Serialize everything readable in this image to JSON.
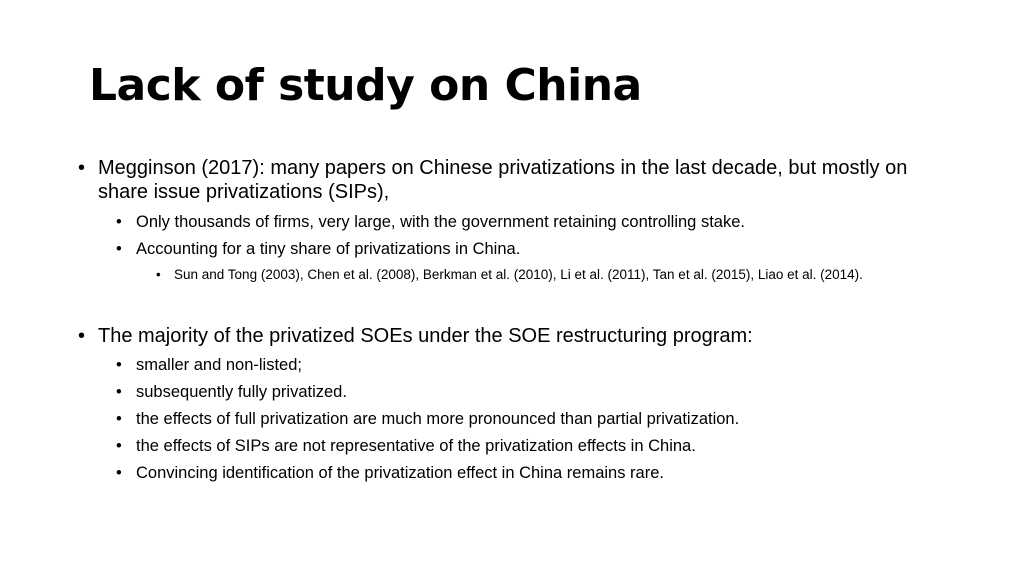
{
  "slide": {
    "title": "Lack of study on China",
    "bullet_glyph": "•",
    "items": [
      {
        "text": "Megginson (2017): many papers on Chinese privatizations in the last decade, but mostly on share issue privatizations (SIPs),",
        "children": [
          "Only thousands of firms, very large, with the government retaining controlling stake.",
          "Accounting for a tiny share of privatizations in China."
        ],
        "sub_children": [
          "Sun and Tong (2003), Chen et al. (2008), Berkman et al. (2010), Li et al. (2011), Tan et al. (2015), Liao et al. (2014)."
        ]
      },
      {
        "text": "The majority of the privatized SOEs under the SOE restructuring program:",
        "children": [
          "smaller and non-listed;",
          "subsequently fully privatized.",
          "the effects of full privatization are much more pronounced than partial privatization.",
          "the effects of SIPs are not representative of the privatization effects in China.",
          "Convincing identification of the privatization effect in China remains rare."
        ]
      }
    ]
  }
}
